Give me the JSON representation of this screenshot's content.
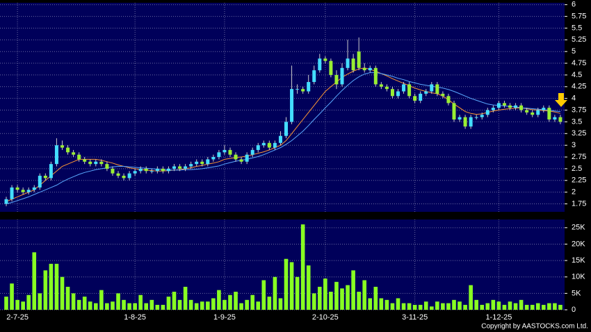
{
  "chart_data": [
    {
      "type": "candlestick",
      "open": [
        1.75,
        1.85,
        2.1,
        2.05,
        2.0,
        2.05,
        2.1,
        2.35,
        2.3,
        2.6,
        3.0,
        2.95,
        2.85,
        2.8,
        2.7,
        2.65,
        2.6,
        2.65,
        2.6,
        2.5,
        2.4,
        2.35,
        2.3,
        2.4,
        2.45,
        2.5,
        2.45,
        2.45,
        2.5,
        2.45,
        2.5,
        2.55,
        2.5,
        2.55,
        2.6,
        2.65,
        2.6,
        2.7,
        2.75,
        2.85,
        2.9,
        2.8,
        2.7,
        2.65,
        2.8,
        2.9,
        3.0,
        3.05,
        2.95,
        3.05,
        3.2,
        3.5,
        4.2,
        4.2,
        4.15,
        4.35,
        4.6,
        4.85,
        4.8,
        4.5,
        4.3,
        4.65,
        4.85,
        5.0,
        4.65,
        4.6,
        4.65,
        4.3,
        4.25,
        4.2,
        4.05,
        4.15,
        4.3,
        4.05,
        3.95,
        4.1,
        4.15,
        4.3,
        4.1,
        4.05,
        3.9,
        3.55,
        3.6,
        3.4,
        3.6,
        3.6,
        3.65,
        3.75,
        3.8,
        3.9,
        3.85,
        3.8,
        3.85,
        3.75,
        3.7,
        3.65,
        3.75,
        3.8,
        3.55,
        3.6
      ],
      "high": [
        1.9,
        2.15,
        2.15,
        2.1,
        2.1,
        2.15,
        2.4,
        2.4,
        2.65,
        3.15,
        3.1,
        3.0,
        2.9,
        2.85,
        2.75,
        2.7,
        2.7,
        2.7,
        2.65,
        2.55,
        2.45,
        2.4,
        2.45,
        2.5,
        2.55,
        2.55,
        2.5,
        2.55,
        2.55,
        2.55,
        2.6,
        2.6,
        2.6,
        2.65,
        2.7,
        2.7,
        2.75,
        2.8,
        2.9,
        3.0,
        2.95,
        2.85,
        2.75,
        2.85,
        2.95,
        3.05,
        3.1,
        3.1,
        3.1,
        3.3,
        3.6,
        4.7,
        4.3,
        4.25,
        4.5,
        4.7,
        4.95,
        4.9,
        4.85,
        4.6,
        4.75,
        5.25,
        4.95,
        5.3,
        4.75,
        4.7,
        4.7,
        4.35,
        4.3,
        4.25,
        4.2,
        4.35,
        4.35,
        4.1,
        4.15,
        4.2,
        4.35,
        4.35,
        4.15,
        4.1,
        3.95,
        3.65,
        3.65,
        3.65,
        3.65,
        3.7,
        3.8,
        3.85,
        3.95,
        3.95,
        3.9,
        3.9,
        3.9,
        3.8,
        3.75,
        3.8,
        3.85,
        3.85,
        3.65,
        3.65
      ],
      "low": [
        1.7,
        1.8,
        2.0,
        1.95,
        1.95,
        2.0,
        2.05,
        2.25,
        2.25,
        2.55,
        2.9,
        2.8,
        2.75,
        2.65,
        2.6,
        2.55,
        2.55,
        2.55,
        2.45,
        2.35,
        2.3,
        2.25,
        2.25,
        2.35,
        2.4,
        2.4,
        2.4,
        2.4,
        2.4,
        2.4,
        2.45,
        2.45,
        2.45,
        2.5,
        2.55,
        2.55,
        2.55,
        2.65,
        2.7,
        2.8,
        2.75,
        2.65,
        2.6,
        2.6,
        2.75,
        2.85,
        2.95,
        2.9,
        2.9,
        3.0,
        3.15,
        3.45,
        4.1,
        4.1,
        4.1,
        4.3,
        4.55,
        4.75,
        4.45,
        4.2,
        4.25,
        4.6,
        4.55,
        4.6,
        4.55,
        4.55,
        4.25,
        4.2,
        4.15,
        4.0,
        4.0,
        4.1,
        4.0,
        3.9,
        3.9,
        4.05,
        4.1,
        4.05,
        4.0,
        3.85,
        3.5,
        3.5,
        3.35,
        3.35,
        3.55,
        3.55,
        3.6,
        3.7,
        3.75,
        3.8,
        3.75,
        3.75,
        3.7,
        3.65,
        3.6,
        3.6,
        3.7,
        3.5,
        3.5,
        3.45
      ],
      "close": [
        1.85,
        2.1,
        2.05,
        2.0,
        2.05,
        2.1,
        2.35,
        2.3,
        2.6,
        3.0,
        2.95,
        2.85,
        2.8,
        2.7,
        2.65,
        2.6,
        2.65,
        2.6,
        2.5,
        2.4,
        2.35,
        2.3,
        2.4,
        2.45,
        2.5,
        2.45,
        2.45,
        2.5,
        2.45,
        2.5,
        2.55,
        2.5,
        2.55,
        2.6,
        2.65,
        2.6,
        2.7,
        2.75,
        2.85,
        2.9,
        2.8,
        2.7,
        2.65,
        2.8,
        2.9,
        3.0,
        3.05,
        2.95,
        3.05,
        3.2,
        3.5,
        4.2,
        4.2,
        4.15,
        4.35,
        4.6,
        4.85,
        4.8,
        4.5,
        4.3,
        4.65,
        4.85,
        4.6,
        4.65,
        4.6,
        4.65,
        4.3,
        4.25,
        4.2,
        4.05,
        4.15,
        4.3,
        4.05,
        3.95,
        4.1,
        4.15,
        4.3,
        4.1,
        4.05,
        3.9,
        3.55,
        3.6,
        3.4,
        3.6,
        3.6,
        3.65,
        3.75,
        3.8,
        3.9,
        3.85,
        3.8,
        3.85,
        3.75,
        3.7,
        3.65,
        3.75,
        3.8,
        3.55,
        3.6,
        3.5
      ],
      "up_color": "#44ddff",
      "down_color": "#99ee33",
      "overlays": [
        {
          "color": "#ff9933",
          "values": [
            1.8,
            1.85,
            1.9,
            1.95,
            2.0,
            2.05,
            2.15,
            2.25,
            2.35,
            2.45,
            2.55,
            2.6,
            2.65,
            2.7,
            2.7,
            2.7,
            2.7,
            2.68,
            2.65,
            2.62,
            2.58,
            2.55,
            2.52,
            2.5,
            2.48,
            2.47,
            2.46,
            2.45,
            2.45,
            2.46,
            2.47,
            2.48,
            2.5,
            2.52,
            2.55,
            2.57,
            2.6,
            2.62,
            2.65,
            2.7,
            2.72,
            2.74,
            2.75,
            2.77,
            2.8,
            2.83,
            2.86,
            2.9,
            2.95,
            3.0,
            3.1,
            3.25,
            3.4,
            3.55,
            3.7,
            3.85,
            4.0,
            4.15,
            4.25,
            4.35,
            4.45,
            4.52,
            4.58,
            4.63,
            4.65,
            4.62,
            4.58,
            4.53,
            4.48,
            4.42,
            4.37,
            4.32,
            4.27,
            4.22,
            4.18,
            4.15,
            4.12,
            4.1,
            4.05,
            3.97,
            3.88,
            3.8,
            3.72,
            3.68,
            3.66,
            3.67,
            3.7,
            3.73,
            3.75,
            3.77,
            3.78,
            3.79,
            3.8,
            3.78,
            3.76,
            3.75,
            3.74,
            3.73,
            3.71,
            3.68
          ]
        },
        {
          "color": "#5aaaff",
          "values": [
            1.75,
            1.78,
            1.82,
            1.86,
            1.9,
            1.95,
            2.0,
            2.05,
            2.1,
            2.15,
            2.22,
            2.28,
            2.33,
            2.38,
            2.42,
            2.45,
            2.48,
            2.5,
            2.52,
            2.54,
            2.55,
            2.55,
            2.54,
            2.53,
            2.52,
            2.51,
            2.5,
            2.49,
            2.48,
            2.47,
            2.47,
            2.47,
            2.48,
            2.48,
            2.49,
            2.5,
            2.52,
            2.54,
            2.56,
            2.6,
            2.63,
            2.66,
            2.68,
            2.7,
            2.73,
            2.76,
            2.8,
            2.85,
            2.9,
            2.95,
            3.02,
            3.1,
            3.2,
            3.3,
            3.42,
            3.55,
            3.67,
            3.8,
            3.92,
            4.05,
            4.17,
            4.28,
            4.38,
            4.46,
            4.52,
            4.55,
            4.55,
            4.53,
            4.5,
            4.47,
            4.43,
            4.4,
            4.36,
            4.33,
            4.3,
            4.28,
            4.26,
            4.24,
            4.22,
            4.19,
            4.15,
            4.1,
            4.05,
            4.0,
            3.96,
            3.92,
            3.88,
            3.86,
            3.85,
            3.84,
            3.83,
            3.82,
            3.8,
            3.79,
            3.78,
            3.77,
            3.76,
            3.75,
            3.73,
            3.72
          ]
        }
      ],
      "ylim": [
        1.58,
        6.04
      ],
      "yticks": [
        6,
        5.75,
        5.5,
        5.25,
        5,
        4.75,
        4.5,
        4.25,
        4,
        3.75,
        3.5,
        3.25,
        3,
        2.75,
        2.5,
        2.25,
        2,
        1.75
      ],
      "grid": true
    },
    {
      "type": "bar",
      "categories": [
        null,
        null,
        "2-7-25",
        null,
        null,
        null,
        null,
        null,
        null,
        null,
        null,
        null,
        null,
        null,
        null,
        null,
        null,
        null,
        null,
        null,
        null,
        null,
        null,
        "1-8-25",
        null,
        null,
        null,
        null,
        null,
        null,
        null,
        null,
        null,
        null,
        null,
        null,
        null,
        null,
        null,
        "1-9-25",
        null,
        null,
        null,
        null,
        null,
        null,
        null,
        null,
        null,
        null,
        null,
        null,
        null,
        null,
        null,
        null,
        null,
        "2-10-25",
        null,
        null,
        null,
        null,
        null,
        null,
        null,
        null,
        null,
        null,
        null,
        null,
        null,
        null,
        null,
        "3-11-25",
        null,
        null,
        null,
        null,
        null,
        null,
        null,
        null,
        null,
        null,
        null,
        null,
        null,
        null,
        "1-12-25",
        null,
        null,
        null,
        null,
        null,
        null,
        null,
        null,
        null,
        null,
        null
      ],
      "values": [
        4000,
        8000,
        3000,
        2500,
        4500,
        17500,
        5000,
        12000,
        14000,
        14000,
        10000,
        7000,
        5000,
        3000,
        4000,
        2500,
        2000,
        6000,
        2000,
        2500,
        5000,
        3000,
        2000,
        2000,
        4500,
        2000,
        3000,
        1500,
        1500,
        4000,
        5500,
        3000,
        7000,
        3000,
        2000,
        2500,
        2500,
        3500,
        6000,
        3000,
        4500,
        5500,
        2000,
        3000,
        4500,
        2500,
        9000,
        4000,
        10000,
        3500,
        15500,
        14500,
        10000,
        26000,
        13500,
        5000,
        7000,
        9500,
        5500,
        8500,
        6500,
        7500,
        12000,
        5500,
        9000,
        3500,
        7000,
        3500,
        3000,
        2000,
        3500,
        2000,
        2000,
        1500,
        1500,
        2500,
        1000,
        2500,
        2000,
        2000,
        3000,
        2500,
        1500,
        7500,
        3000,
        1500,
        2000,
        3000,
        2500,
        1500,
        2500,
        2000,
        3000,
        1500,
        1500,
        2000,
        1500,
        2000,
        2000,
        1500
      ],
      "color": "#88ff22",
      "ylim": [
        0,
        27500
      ],
      "yticks": [
        0,
        {
          "value": 5000,
          "label": "5K"
        },
        {
          "value": 10000,
          "label": "10K"
        },
        {
          "value": 15000,
          "label": "15K"
        },
        {
          "value": 20000,
          "label": "20K"
        },
        {
          "value": 25000,
          "label": "25K"
        }
      ],
      "grid": true
    }
  ],
  "copyright": "Copyright by AASTOCKS.com Ltd."
}
